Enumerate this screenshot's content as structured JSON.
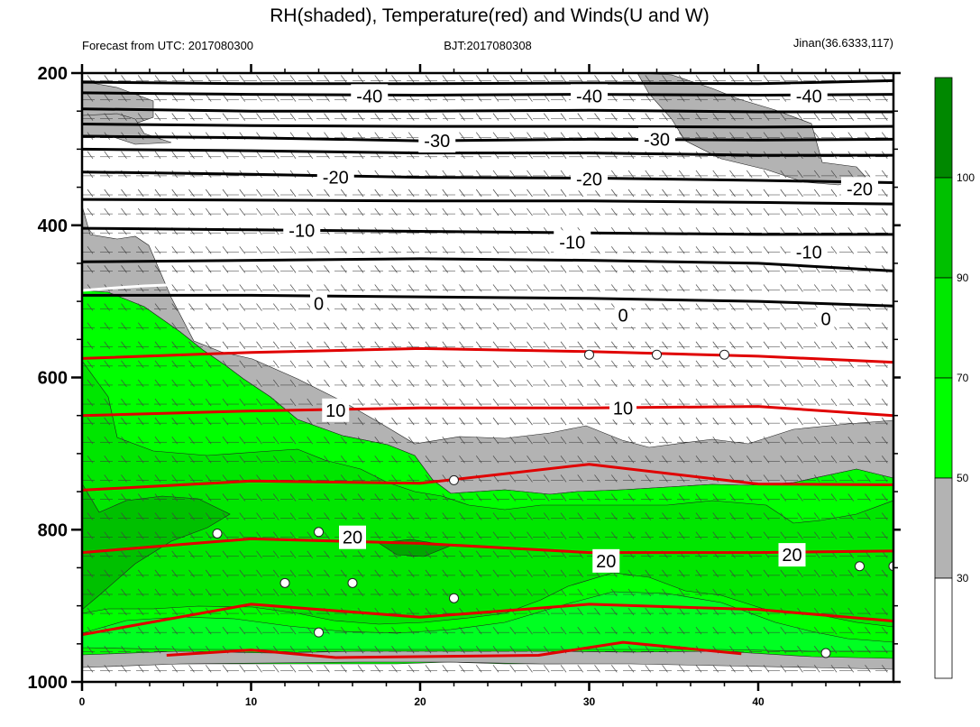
{
  "header": {
    "title": "RH(shaded), Temperature(red) and Winds(U and W)",
    "left": "Forecast from UTC: 2017080300",
    "center": "BJT:2017080308",
    "right": "Jinan(36.6333,117)"
  },
  "chart_data": {
    "type": "contour",
    "title": "RH(shaded), Temperature(red) and Winds(U and W)",
    "xlim": [
      0,
      48
    ],
    "ylim": [
      1000,
      200
    ],
    "y_reversed": true,
    "x_ticks": [
      0,
      10,
      20,
      30,
      40
    ],
    "x_tick_labels": [
      "0",
      "10",
      "20",
      "30",
      "40"
    ],
    "y_ticks": [
      200,
      400,
      600,
      800,
      1000
    ],
    "y_tick_labels": [
      "200",
      "400",
      "600",
      "800",
      "1000"
    ],
    "colorbar": {
      "levels": [
        30,
        50,
        70,
        90,
        100
      ],
      "level_labels": [
        "30",
        "50",
        "70",
        "90",
        "100"
      ],
      "colors": [
        "#ffffff",
        "#b3b3b3",
        "#00ff00",
        "#00e800",
        "#00c000",
        "#008800"
      ],
      "color_names": [
        "<30",
        "30-50",
        "50-70",
        "70-90",
        "90-100",
        ">100"
      ]
    },
    "temperature_contours": [
      {
        "level": -40,
        "label": "-40",
        "color": "#000000",
        "points": [
          [
            0,
            212
          ],
          [
            10,
            214
          ],
          [
            20,
            214
          ],
          [
            30,
            213
          ],
          [
            40,
            214
          ],
          [
            48,
            210
          ]
        ]
      },
      {
        "level": -40,
        "label": "",
        "color": "#000000",
        "points": [
          [
            0,
            226
          ],
          [
            10,
            228
          ],
          [
            20,
            229
          ],
          [
            30,
            228
          ],
          [
            40,
            229
          ],
          [
            48,
            228
          ]
        ]
      },
      {
        "level": -40,
        "label": "",
        "color": "#000000",
        "points": [
          [
            0,
            247
          ],
          [
            10,
            250
          ],
          [
            20,
            250
          ],
          [
            30,
            249
          ],
          [
            40,
            251
          ],
          [
            48,
            251
          ]
        ]
      },
      {
        "level": -40,
        "label": "",
        "color": "#000000",
        "points": [
          [
            0,
            267
          ],
          [
            10,
            269
          ],
          [
            20,
            270
          ],
          [
            30,
            270
          ],
          [
            40,
            271
          ],
          [
            48,
            270
          ]
        ]
      },
      {
        "level": -30,
        "label": "-30",
        "color": "#000000",
        "points": [
          [
            0,
            283
          ],
          [
            10,
            285
          ],
          [
            20,
            289
          ],
          [
            30,
            287
          ],
          [
            40,
            288
          ],
          [
            48,
            287
          ]
        ]
      },
      {
        "level": -30,
        "label": "",
        "color": "#000000",
        "points": [
          [
            0,
            300
          ],
          [
            10,
            302
          ],
          [
            20,
            305
          ],
          [
            30,
            305
          ],
          [
            40,
            308
          ],
          [
            48,
            308
          ]
        ]
      },
      {
        "level": -20,
        "label": "-20",
        "color": "#000000",
        "points": [
          [
            0,
            330
          ],
          [
            10,
            333
          ],
          [
            20,
            337
          ],
          [
            30,
            338
          ],
          [
            40,
            341
          ],
          [
            48,
            344
          ]
        ]
      },
      {
        "level": -20,
        "label": "",
        "color": "#000000",
        "points": [
          [
            0,
            366
          ],
          [
            10,
            367
          ],
          [
            20,
            368
          ],
          [
            30,
            368
          ],
          [
            40,
            370
          ],
          [
            48,
            372
          ]
        ]
      },
      {
        "level": -10,
        "label": "-10",
        "color": "#000000",
        "points": [
          [
            0,
            404
          ],
          [
            10,
            406
          ],
          [
            20,
            408
          ],
          [
            30,
            410
          ],
          [
            40,
            412
          ],
          [
            48,
            412
          ]
        ]
      },
      {
        "level": -10,
        "label": "",
        "color": "#000000",
        "points": [
          [
            0,
            448
          ],
          [
            10,
            446
          ],
          [
            20,
            444
          ],
          [
            30,
            446
          ],
          [
            40,
            450
          ],
          [
            48,
            460
          ]
        ]
      },
      {
        "level": 0,
        "label": "0",
        "color": "#000000",
        "points": [
          [
            0,
            492
          ],
          [
            10,
            492
          ],
          [
            20,
            494
          ],
          [
            30,
            496
          ],
          [
            40,
            500
          ],
          [
            48,
            506
          ]
        ]
      },
      {
        "level": 10,
        "label": "10",
        "color": "#e00000",
        "points": [
          [
            0,
            575
          ],
          [
            10,
            567
          ],
          [
            20,
            562
          ],
          [
            30,
            566
          ],
          [
            40,
            572
          ],
          [
            48,
            580
          ]
        ]
      },
      {
        "level": 10,
        "label": "",
        "color": "#e00000",
        "points": [
          [
            0,
            650
          ],
          [
            10,
            644
          ],
          [
            20,
            640
          ],
          [
            30,
            640
          ],
          [
            40,
            638
          ],
          [
            48,
            650
          ]
        ]
      },
      {
        "level": 20,
        "label": "20",
        "color": "#e00000",
        "points": [
          [
            0,
            748
          ],
          [
            10,
            736
          ],
          [
            20,
            739
          ],
          [
            30,
            714
          ],
          [
            40,
            740
          ],
          [
            48,
            741
          ]
        ]
      },
      {
        "level": 20,
        "label": "",
        "color": "#e00000",
        "points": [
          [
            0,
            830
          ],
          [
            10,
            812
          ],
          [
            20,
            818
          ],
          [
            30,
            830
          ],
          [
            40,
            830
          ],
          [
            48,
            828
          ]
        ]
      },
      {
        "level": 20,
        "label": "",
        "color": "#e00000",
        "points": [
          [
            0,
            938
          ],
          [
            10,
            898
          ],
          [
            20,
            915
          ],
          [
            30,
            898
          ],
          [
            40,
            905
          ],
          [
            48,
            920
          ]
        ]
      },
      {
        "level": 30,
        "label": "",
        "color": "#e00000",
        "points": [
          [
            5,
            965
          ],
          [
            10,
            958
          ],
          [
            15,
            968
          ],
          [
            27,
            965
          ],
          [
            32,
            948
          ],
          [
            39,
            963
          ]
        ]
      }
    ],
    "temperature_labels": [
      {
        "text": "-40",
        "x": 17,
        "y": 230
      },
      {
        "text": "-40",
        "x": 30,
        "y": 230
      },
      {
        "text": "-40",
        "x": 43,
        "y": 230
      },
      {
        "text": "-30",
        "x": 21,
        "y": 289
      },
      {
        "text": "-30",
        "x": 34,
        "y": 287
      },
      {
        "text": "-20",
        "x": 15,
        "y": 337
      },
      {
        "text": "-20",
        "x": 30,
        "y": 339
      },
      {
        "text": "-20",
        "x": 46,
        "y": 352
      },
      {
        "text": "-10",
        "x": 13,
        "y": 407
      },
      {
        "text": "-10",
        "x": 29,
        "y": 422
      },
      {
        "text": "-10",
        "x": 43,
        "y": 435
      },
      {
        "text": "0",
        "x": 14,
        "y": 503
      },
      {
        "text": "0",
        "x": 32,
        "y": 518
      },
      {
        "text": "0",
        "x": 44,
        "y": 523
      },
      {
        "text": "10",
        "x": 15,
        "y": 643
      },
      {
        "text": "10",
        "x": 32,
        "y": 640
      },
      {
        "text": "20",
        "x": 16,
        "y": 810
      },
      {
        "text": "20",
        "x": 31,
        "y": 841
      },
      {
        "text": "20",
        "x": 42,
        "y": 833
      }
    ],
    "calm_wind_markers": [
      [
        8,
        805
      ],
      [
        14,
        803
      ],
      [
        12,
        870
      ],
      [
        16,
        870
      ],
      [
        22,
        890
      ],
      [
        14,
        935
      ],
      [
        22,
        735
      ],
      [
        30,
        570
      ],
      [
        34,
        570
      ],
      [
        38,
        570
      ],
      [
        44,
        962
      ],
      [
        46,
        848
      ],
      [
        48,
        848
      ]
    ]
  }
}
